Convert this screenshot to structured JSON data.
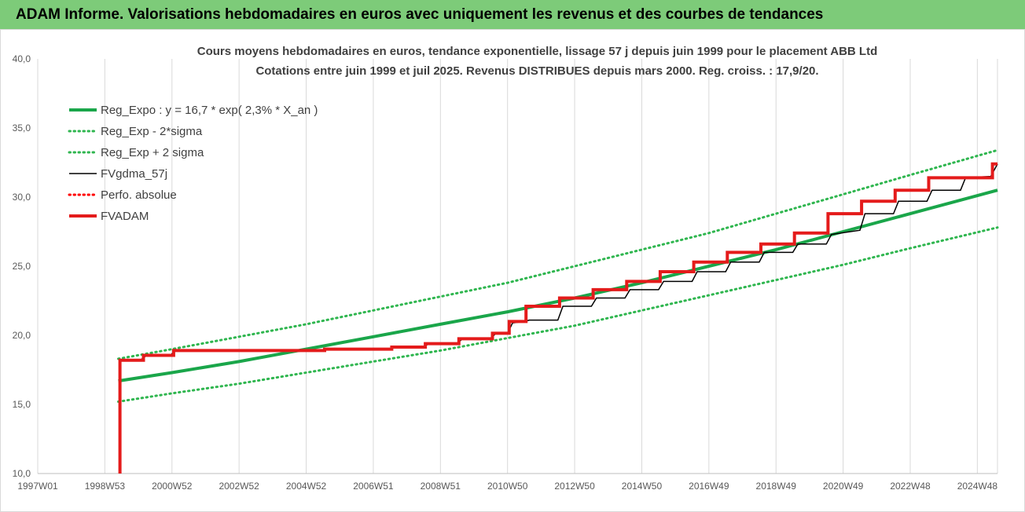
{
  "page": {
    "banner_title": "ADAM Informe. Valorisations hebdomadaires en euros avec uniquement les revenus et des courbes de tendances"
  },
  "colors": {
    "banner": "#7dcb79",
    "reg_expo": "#1aa64a",
    "sigma": "#2fb64f",
    "fvgdma": "#000000",
    "perfo": "#ff0000",
    "fvadam": "#e41b1b",
    "gridline": "#d9d9d9"
  },
  "chart_data": {
    "type": "line",
    "title": "Cours moyens hebdomadaires en euros, tendance exponentielle, lissage 57 j depuis juin 1999 pour le placement ABB Ltd",
    "subtitle": "Cotations entre juin 1999 et juil 2025. Revenus DISTRIBUES depuis mars 2000. Reg. croiss. : 17,9/20.",
    "xlabel": "",
    "ylabel": "",
    "ylim": [
      10,
      40
    ],
    "xlim": [
      1997.0,
      2025.6
    ],
    "yticks": [
      "10,0",
      "15,0",
      "20,0",
      "25,0",
      "30,0",
      "35,0",
      "40,0"
    ],
    "ytick_values": [
      10,
      15,
      20,
      25,
      30,
      35,
      40
    ],
    "xticks": [
      "1997W01",
      "1998W53",
      "2000W52",
      "2002W52",
      "2004W52",
      "2006W51",
      "2008W51",
      "2010W50",
      "2012W50",
      "2014W50",
      "2016W49",
      "2018W49",
      "2020W49",
      "2022W48",
      "2024W48"
    ],
    "xtick_values": [
      1997.0,
      1999.0,
      2001.0,
      2003.0,
      2005.0,
      2007.0,
      2009.0,
      2011.0,
      2013.0,
      2015.0,
      2017.0,
      2019.0,
      2021.0,
      2023.0,
      2025.0
    ],
    "grid": "vertical",
    "legend_position": "top-left",
    "series": [
      {
        "name": "Reg_Expo : y = 16,7 * exp( 2,3% *  X_an )",
        "style": "solid-thick",
        "color_key": "reg_expo",
        "x": [
          1999.4,
          2001,
          2003,
          2005,
          2007,
          2009,
          2011,
          2013,
          2015,
          2017,
          2019,
          2021,
          2023,
          2025.6
        ],
        "y": [
          16.7,
          17.3,
          18.1,
          19.0,
          19.9,
          20.8,
          21.7,
          22.7,
          23.8,
          25.0,
          26.2,
          27.5,
          28.8,
          30.5
        ]
      },
      {
        "name": "Reg_Exp - 2*sigma",
        "style": "dotted",
        "color_key": "sigma",
        "x": [
          1999.4,
          2001,
          2003,
          2005,
          2007,
          2009,
          2011,
          2013,
          2015,
          2017,
          2019,
          2021,
          2023,
          2025.6
        ],
        "y": [
          15.2,
          15.8,
          16.5,
          17.3,
          18.1,
          18.9,
          19.8,
          20.7,
          21.8,
          22.9,
          24.0,
          25.1,
          26.3,
          27.8
        ]
      },
      {
        "name": "Reg_Exp + 2 sigma",
        "style": "dotted",
        "color_key": "sigma",
        "x": [
          1999.4,
          2001,
          2003,
          2005,
          2007,
          2009,
          2011,
          2013,
          2015,
          2017,
          2019,
          2021,
          2023,
          2025.6
        ],
        "y": [
          18.3,
          19.0,
          19.9,
          20.8,
          21.8,
          22.8,
          23.8,
          25.0,
          26.2,
          27.4,
          28.8,
          30.2,
          31.6,
          33.4
        ]
      },
      {
        "name": "FVgdma_57j",
        "style": "solid-thin",
        "color_key": "fvgdma",
        "x": [
          1999.45,
          2000.05,
          2000.25,
          2000.95,
          2001.1,
          2005.5,
          2005.65,
          2007.5,
          2007.65,
          2008.5,
          2008.65,
          2009.5,
          2009.65,
          2010.5,
          2010.65,
          2011.0,
          2011.15,
          2011.5,
          2011.65,
          2012.5,
          2012.65,
          2013.5,
          2013.65,
          2014.5,
          2014.65,
          2015.5,
          2015.65,
          2016.5,
          2016.65,
          2017.5,
          2017.65,
          2018.5,
          2018.65,
          2019.5,
          2019.65,
          2020.5,
          2020.65,
          2021.5,
          2021.65,
          2022.5,
          2022.65,
          2023.5,
          2023.65,
          2024.5,
          2024.65,
          2025.4,
          2025.6
        ],
        "y": [
          18.2,
          18.2,
          18.55,
          18.55,
          18.9,
          18.9,
          19.0,
          19.0,
          19.15,
          19.15,
          19.4,
          19.4,
          19.75,
          19.75,
          20.15,
          20.15,
          20.9,
          21.0,
          21.1,
          21.1,
          22.1,
          22.1,
          22.7,
          22.7,
          23.3,
          23.3,
          23.9,
          23.9,
          24.6,
          24.6,
          25.3,
          25.3,
          26.0,
          26.0,
          26.6,
          26.6,
          27.3,
          27.6,
          28.8,
          28.8,
          29.7,
          29.7,
          30.5,
          30.5,
          31.4,
          31.5,
          32.4
        ]
      },
      {
        "name": "Perfo. absolue",
        "style": "dotted",
        "color_key": "perfo",
        "x": [],
        "y": []
      },
      {
        "name": "FVADAM",
        "style": "solid-thick",
        "color_key": "fvadam",
        "x": [
          1999.45,
          1999.45,
          2000.15,
          2000.15,
          2001.05,
          2001.05,
          2005.55,
          2005.55,
          2007.55,
          2007.55,
          2008.55,
          2008.55,
          2009.55,
          2009.55,
          2010.55,
          2010.55,
          2011.05,
          2011.05,
          2011.55,
          2011.55,
          2012.55,
          2012.55,
          2013.55,
          2013.55,
          2014.55,
          2014.55,
          2015.55,
          2015.55,
          2016.55,
          2016.55,
          2017.55,
          2017.55,
          2018.55,
          2018.55,
          2019.55,
          2019.55,
          2020.55,
          2020.55,
          2021.55,
          2021.55,
          2022.55,
          2022.55,
          2023.55,
          2023.55,
          2024.55,
          2024.55,
          2025.45,
          2025.45,
          2025.6
        ],
        "y": [
          10.0,
          18.2,
          18.2,
          18.55,
          18.55,
          18.9,
          18.9,
          19.0,
          19.0,
          19.15,
          19.15,
          19.4,
          19.4,
          19.75,
          19.75,
          20.15,
          20.15,
          21.0,
          21.0,
          22.1,
          22.1,
          22.7,
          22.7,
          23.3,
          23.3,
          23.9,
          23.9,
          24.6,
          24.6,
          25.3,
          25.3,
          26.0,
          26.0,
          26.6,
          26.6,
          27.4,
          27.4,
          28.8,
          28.8,
          29.7,
          29.7,
          30.5,
          30.5,
          31.4,
          31.4,
          31.4,
          31.4,
          32.4,
          32.4
        ]
      }
    ]
  }
}
